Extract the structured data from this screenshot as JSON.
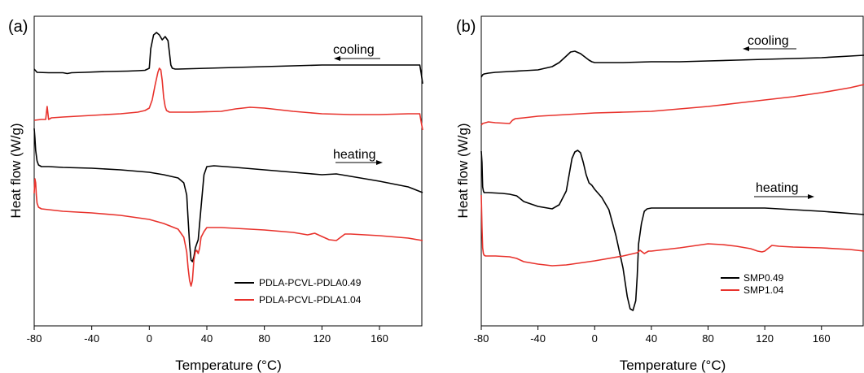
{
  "colors": {
    "series_black": "#000000",
    "series_red": "#e8322c"
  },
  "chart_data": [
    {
      "type": "line",
      "panel_label": "(a)",
      "xlabel": "Temperature (°C)",
      "ylabel": "Heat flow (W/g)",
      "xlim": [
        -80,
        190
      ],
      "xticks": [
        -80,
        -40,
        0,
        40,
        80,
        120,
        160
      ],
      "xtick_labels": [
        "-80",
        "-40",
        "0",
        "40",
        "80",
        "120",
        "160"
      ],
      "y_values_shown": false,
      "legend": {
        "position": "bottom-right",
        "entries": [
          "PDLA-PCVL-PDLA0.49",
          "PDLA-PCVL-PDLA1.04"
        ]
      },
      "annotations": [
        {
          "text": "cooling",
          "arrow": "left"
        },
        {
          "text": "heating",
          "arrow": "right"
        }
      ],
      "series": [
        {
          "name": "PDLA-PCVL-PDLA0.49",
          "segment": "cooling",
          "color": "#000000",
          "x": [
            -80,
            -78,
            -70,
            -60,
            -57,
            -54,
            -45,
            -30,
            -15,
            -8,
            -3,
            0,
            1,
            3,
            5,
            7,
            9,
            11,
            13,
            14,
            15,
            16,
            18,
            20,
            30,
            40,
            60,
            80,
            100,
            120,
            140,
            160,
            180,
            188,
            189,
            190
          ],
          "y": [
            85,
            89,
            89.5,
            89.5,
            90.5,
            89.5,
            89,
            88,
            87.5,
            87,
            86.5,
            84,
            60,
            43,
            40,
            43,
            49,
            45,
            50,
            65,
            80,
            84,
            85,
            85,
            84.5,
            84,
            83,
            82,
            81,
            80,
            80,
            80,
            80,
            80,
            90,
            103
          ]
        },
        {
          "name": "PDLA-PCVL-PDLA1.04",
          "segment": "cooling",
          "color": "#e8322c",
          "x": [
            -80,
            -75,
            -72,
            -71,
            -70,
            -69,
            -68,
            -60,
            -40,
            -20,
            -8,
            -3,
            0,
            2,
            4,
            6,
            7,
            8,
            9,
            10,
            11,
            12,
            14,
            16,
            20,
            30,
            50,
            60,
            70,
            80,
            90,
            100,
            120,
            140,
            160,
            180,
            188,
            189,
            190
          ],
          "y": [
            148,
            147,
            147,
            131,
            147,
            146,
            145,
            144,
            142,
            140,
            138,
            136,
            133,
            123,
            105,
            89,
            84,
            86,
            99,
            120,
            131,
            136,
            138,
            138,
            138,
            138,
            137,
            134,
            132,
            133,
            135,
            137,
            140,
            141,
            141,
            140,
            140,
            150,
            160
          ]
        },
        {
          "name": "PDLA-PCVL-PDLA0.49",
          "segment": "heating",
          "color": "#000000",
          "x": [
            -80,
            -79.5,
            -79,
            -78,
            -77,
            -76,
            -75,
            -70,
            -60,
            -40,
            -20,
            0,
            10,
            20,
            24,
            26,
            27,
            28,
            29,
            30,
            31,
            32,
            33,
            34,
            36,
            38,
            40,
            45,
            60,
            80,
            100,
            120,
            130,
            140,
            160,
            180,
            190
          ],
          "y": [
            158,
            170,
            185,
            198,
            203,
            204,
            205,
            205,
            206,
            207,
            209,
            212,
            215,
            219,
            225,
            240,
            270,
            300,
            320,
            322,
            316,
            305,
            300,
            295,
            255,
            215,
            205,
            204,
            206,
            209,
            212,
            215,
            214,
            217,
            223,
            230,
            237
          ]
        },
        {
          "name": "PDLA-PCVL-PDLA1.04",
          "segment": "heating",
          "color": "#e8322c",
          "x": [
            -80,
            -79.5,
            -79,
            -78.5,
            -78,
            -77,
            -76,
            -75,
            -70,
            -60,
            -40,
            -20,
            0,
            10,
            20,
            24,
            26,
            27,
            28,
            29,
            30,
            31,
            32,
            33,
            34,
            35,
            36,
            38,
            40,
            50,
            60,
            80,
            100,
            110,
            115,
            120,
            125,
            130,
            133,
            136,
            140,
            160,
            180,
            190
          ],
          "y": [
            238,
            220,
            225,
            240,
            250,
            255,
            256,
            257,
            258,
            260,
            262,
            265,
            270,
            275,
            282,
            292,
            310,
            330,
            345,
            352,
            345,
            320,
            310,
            308,
            312,
            305,
            292,
            285,
            280,
            280,
            281,
            283,
            286,
            289,
            287,
            291,
            295,
            296,
            292,
            288,
            288,
            290,
            293,
            296
          ]
        }
      ]
    },
    {
      "type": "line",
      "panel_label": "(b)",
      "xlabel": "Temperature (°C)",
      "ylabel": "Heat flow (W/g)",
      "xlim": [
        -80,
        190
      ],
      "xticks": [
        -80,
        -40,
        0,
        40,
        80,
        120,
        160
      ],
      "xtick_labels": [
        "-80",
        "-40",
        "0",
        "40",
        "80",
        "120",
        "160"
      ],
      "y_values_shown": false,
      "legend": {
        "position": "bottom-right",
        "entries": [
          "SMP0.49",
          "SMP1.04"
        ]
      },
      "annotations": [
        {
          "text": "cooling",
          "arrow": "left"
        },
        {
          "text": "heating",
          "arrow": "right"
        }
      ],
      "series": [
        {
          "name": "SMP0.49",
          "segment": "cooling",
          "color": "#000000",
          "x": [
            -80,
            -79,
            -78,
            -75,
            -70,
            -60,
            -50,
            -40,
            -30,
            -25,
            -20,
            -17,
            -14,
            -10,
            -7,
            -4,
            -2,
            0,
            5,
            20,
            40,
            60,
            80,
            100,
            120,
            140,
            160,
            180,
            190
          ],
          "y": [
            95,
            92,
            91,
            90,
            89,
            88,
            87,
            86,
            82,
            77,
            69,
            64,
            63,
            66,
            70,
            74,
            76,
            77,
            77,
            77,
            76,
            76,
            75,
            74,
            73,
            72,
            71,
            69,
            68
          ]
        },
        {
          "name": "SMP1.04",
          "segment": "cooling",
          "color": "#e8322c",
          "x": [
            -80,
            -79,
            -75,
            -70,
            -60,
            -58,
            -56,
            -50,
            -40,
            -20,
            0,
            20,
            40,
            60,
            80,
            100,
            120,
            140,
            160,
            180,
            190
          ],
          "y": [
            154,
            152,
            150,
            151,
            152,
            148,
            146,
            145,
            143,
            141,
            139,
            138,
            137,
            134,
            131,
            127,
            123,
            119,
            114,
            108,
            104
          ]
        },
        {
          "name": "SMP0.49",
          "segment": "heating",
          "color": "#000000",
          "x": [
            -80,
            -79.5,
            -79,
            -78.5,
            -78,
            -77,
            -75,
            -65,
            -60,
            -55,
            -50,
            -40,
            -30,
            -25,
            -20,
            -18,
            -16,
            -14,
            -12,
            -10,
            -8,
            -6,
            -4,
            -2,
            0,
            5,
            10,
            15,
            20,
            23,
            25,
            27,
            29,
            30,
            31,
            33,
            35,
            37,
            40,
            50,
            80,
            120,
            160,
            190
          ],
          "y": [
            186,
            200,
            230,
            235,
            237,
            237,
            237,
            238,
            239,
            241,
            248,
            254,
            257,
            252,
            235,
            215,
            195,
            187,
            185,
            188,
            200,
            215,
            225,
            228,
            233,
            243,
            258,
            290,
            330,
            365,
            380,
            382,
            370,
            340,
            300,
            275,
            260,
            257,
            256,
            256,
            256,
            256,
            260,
            264
          ]
        },
        {
          "name": "SMP1.04",
          "segment": "heating",
          "color": "#e8322c",
          "x": [
            -80,
            -79.5,
            -79,
            -78.5,
            -78,
            -77,
            -75,
            -70,
            -60,
            -55,
            -50,
            -40,
            -30,
            -20,
            0,
            20,
            30,
            32,
            35,
            38,
            40,
            60,
            80,
            90,
            100,
            110,
            115,
            118,
            120,
            125,
            130,
            140,
            160,
            180,
            190
          ],
          "y": [
            240,
            280,
            305,
            312,
            314,
            315,
            315,
            315,
            316,
            318,
            322,
            325,
            327,
            326,
            321,
            315,
            311,
            308,
            312,
            309,
            309,
            305,
            300,
            301,
            303,
            306,
            309,
            310,
            309,
            302,
            303,
            304,
            305,
            307,
            309
          ]
        }
      ]
    }
  ]
}
